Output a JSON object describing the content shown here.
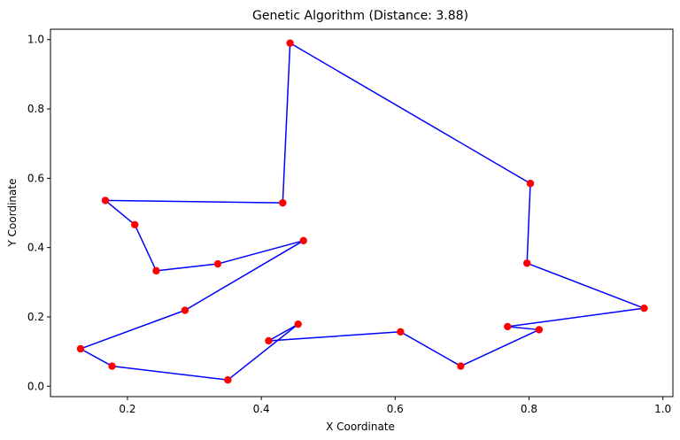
{
  "chart_data": {
    "type": "line",
    "title": "Genetic Algorithm (Distance: 3.88)",
    "xlabel": "X Coordinate",
    "ylabel": "Y Coordinate",
    "xlim": [
      0.085,
      1.015
    ],
    "ylim": [
      -0.03,
      1.03
    ],
    "xticks": [
      0.2,
      0.4,
      0.6,
      0.8,
      1.0
    ],
    "xtick_labels": [
      "0.2",
      "0.4",
      "0.6",
      "0.8",
      "1.0"
    ],
    "yticks": [
      0.0,
      0.2,
      0.4,
      0.6,
      0.8,
      1.0
    ],
    "ytick_labels": [
      "0.0",
      "0.2",
      "0.4",
      "0.6",
      "0.8",
      "1.0"
    ],
    "grid": false,
    "legend": "none",
    "series": [
      {
        "closed": true,
        "line_color": "#0000ff",
        "marker_color": "#ff0000",
        "x": [
          0.443,
          0.802,
          0.797,
          0.972,
          0.768,
          0.815,
          0.698,
          0.608,
          0.411,
          0.455,
          0.35,
          0.177,
          0.13,
          0.286,
          0.463,
          0.335,
          0.243,
          0.211,
          0.167,
          0.432
        ],
        "y": [
          0.99,
          0.585,
          0.355,
          0.225,
          0.172,
          0.163,
          0.058,
          0.157,
          0.131,
          0.179,
          0.018,
          0.058,
          0.108,
          0.219,
          0.42,
          0.353,
          0.333,
          0.466,
          0.536,
          0.529
        ]
      }
    ]
  }
}
